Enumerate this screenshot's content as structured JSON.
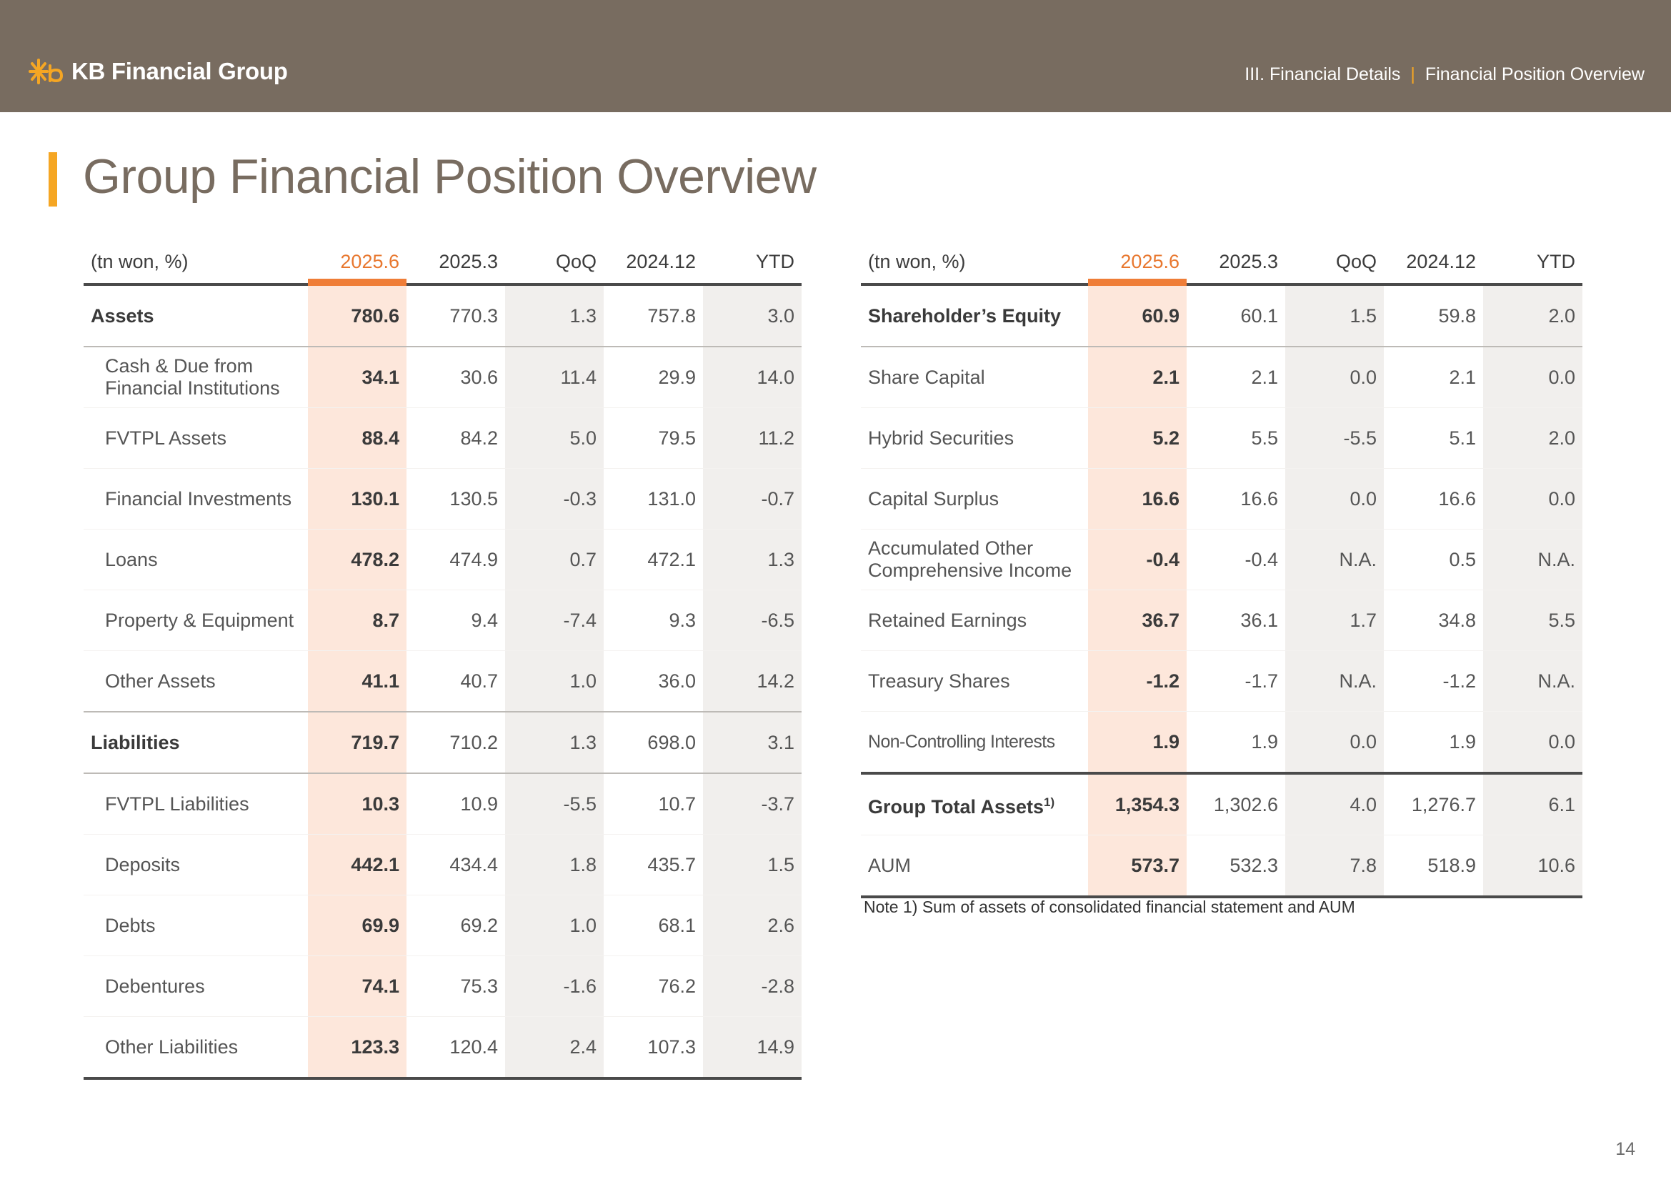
{
  "header": {
    "logo_text": "KB Financial Group",
    "breadcrumb_section": "III. Financial Details",
    "breadcrumb_separator": "|",
    "breadcrumb_page": "Financial Position Overview"
  },
  "page_title": "Group Financial Position Overview",
  "colors": {
    "header_bg": "#786c60",
    "accent": "#f5a623",
    "highlight": "#ef7d37",
    "highlight_col_bg": "#fde7db",
    "shaded_col_bg": "#f1efed"
  },
  "left_table": {
    "columns": [
      "(tn won, %)",
      "2025.6",
      "2025.3",
      "QoQ",
      "2024.12",
      "YTD"
    ],
    "rows": [
      {
        "label": "Assets",
        "values": [
          "780.6",
          "770.3",
          "1.3",
          "757.8",
          "3.0"
        ]
      },
      {
        "label": "Cash & Due from\nFinancial Institutions",
        "values": [
          "34.1",
          "30.6",
          "11.4",
          "29.9",
          "14.0"
        ]
      },
      {
        "label": "FVTPL Assets",
        "values": [
          "88.4",
          "84.2",
          "5.0",
          "79.5",
          "11.2"
        ]
      },
      {
        "label": "Financial Investments",
        "values": [
          "130.1",
          "130.5",
          "-0.3",
          "131.0",
          "-0.7"
        ]
      },
      {
        "label": "Loans",
        "values": [
          "478.2",
          "474.9",
          "0.7",
          "472.1",
          "1.3"
        ]
      },
      {
        "label": "Property & Equipment",
        "values": [
          "8.7",
          "9.4",
          "-7.4",
          "9.3",
          "-6.5"
        ]
      },
      {
        "label": "Other Assets",
        "values": [
          "41.1",
          "40.7",
          "1.0",
          "36.0",
          "14.2"
        ]
      },
      {
        "label": "Liabilities",
        "values": [
          "719.7",
          "710.2",
          "1.3",
          "698.0",
          "3.1"
        ]
      },
      {
        "label": "FVTPL Liabilities",
        "values": [
          "10.3",
          "10.9",
          "-5.5",
          "10.7",
          "-3.7"
        ]
      },
      {
        "label": "Deposits",
        "values": [
          "442.1",
          "434.4",
          "1.8",
          "435.7",
          "1.5"
        ]
      },
      {
        "label": "Debts",
        "values": [
          "69.9",
          "69.2",
          "1.0",
          "68.1",
          "2.6"
        ]
      },
      {
        "label": "Debentures",
        "values": [
          "74.1",
          "75.3",
          "-1.6",
          "76.2",
          "-2.8"
        ]
      },
      {
        "label": "Other Liabilities",
        "values": [
          "123.3",
          "120.4",
          "2.4",
          "107.3",
          "14.9"
        ]
      }
    ]
  },
  "right_table": {
    "columns": [
      "(tn won, %)",
      "2025.6",
      "2025.3",
      "QoQ",
      "2024.12",
      "YTD"
    ],
    "rows": [
      {
        "label": "Shareholder’s Equity",
        "values": [
          "60.9",
          "60.1",
          "1.5",
          "59.8",
          "2.0"
        ]
      },
      {
        "label": "Share Capital",
        "values": [
          "2.1",
          "2.1",
          "0.0",
          "2.1",
          "0.0"
        ]
      },
      {
        "label": "Hybrid Securities",
        "values": [
          "5.2",
          "5.5",
          "-5.5",
          "5.1",
          "2.0"
        ]
      },
      {
        "label": "Capital Surplus",
        "values": [
          "16.6",
          "16.6",
          "0.0",
          "16.6",
          "0.0"
        ]
      },
      {
        "label": "Accumulated Other\nComprehensive Income",
        "values": [
          "-0.4",
          "-0.4",
          "N.A.",
          "0.5",
          "N.A."
        ]
      },
      {
        "label": "Retained Earnings",
        "values": [
          "36.7",
          "36.1",
          "1.7",
          "34.8",
          "5.5"
        ]
      },
      {
        "label": "Treasury Shares",
        "values": [
          "-1.2",
          "-1.7",
          "N.A.",
          "-1.2",
          "N.A."
        ]
      },
      {
        "label": "Non-Controlling Interests",
        "values": [
          "1.9",
          "1.9",
          "0.0",
          "1.9",
          "0.0"
        ]
      },
      {
        "label": "Group Total Assets",
        "sup": "1)",
        "values": [
          "1,354.3",
          "1,302.6",
          "4.0",
          "1,276.7",
          "6.1"
        ]
      },
      {
        "label": "AUM",
        "values": [
          "573.7",
          "532.3",
          "7.8",
          "518.9",
          "10.6"
        ]
      }
    ]
  },
  "note": "Note 1) Sum of assets of consolidated financial statement and AUM",
  "page_number": "14"
}
